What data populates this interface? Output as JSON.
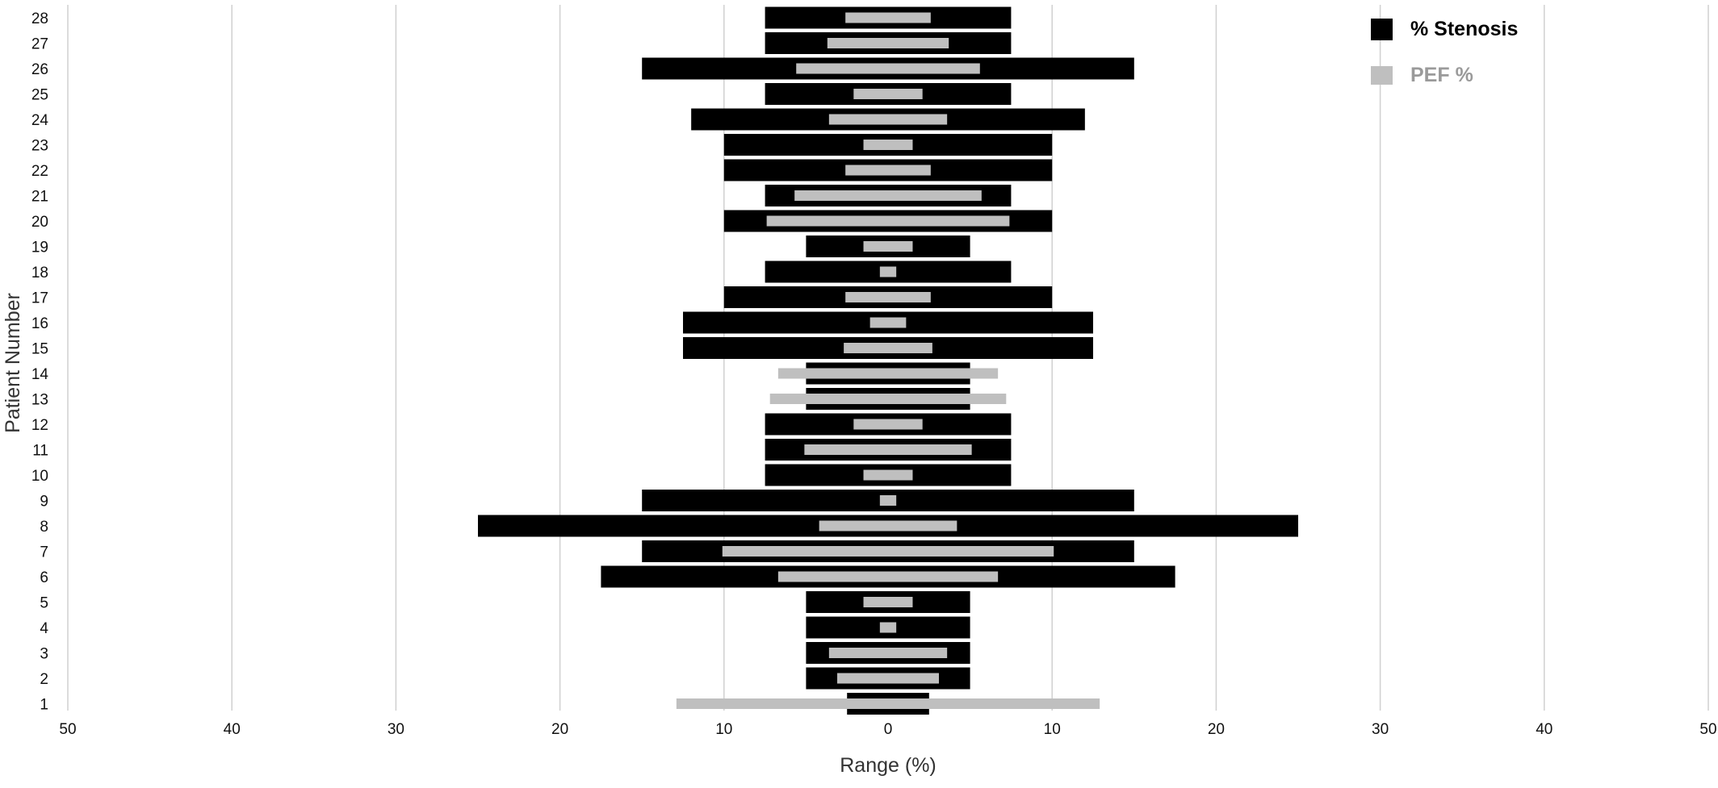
{
  "chart_data": {
    "type": "bar",
    "orientation": "horizontal",
    "symmetric_about_zero": true,
    "title": "",
    "xlabel": "Range (%)",
    "ylabel": "Patient Number",
    "xlim": [
      -50,
      50
    ],
    "x_ticks": [
      -50,
      -40,
      -30,
      -20,
      -10,
      0,
      10,
      20,
      30,
      40,
      50
    ],
    "x_tick_labels": [
      "50",
      "40",
      "30",
      "20",
      "10",
      "0",
      "10",
      "20",
      "30",
      "40",
      "50"
    ],
    "grid": "vertical",
    "legend": "top-right",
    "categories": [
      "1",
      "2",
      "3",
      "4",
      "5",
      "6",
      "7",
      "8",
      "9",
      "10",
      "11",
      "12",
      "13",
      "14",
      "15",
      "16",
      "17",
      "18",
      "19",
      "20",
      "21",
      "22",
      "23",
      "24",
      "25",
      "26",
      "27",
      "28"
    ],
    "series": [
      {
        "name": "% Stenosis",
        "color": "#000000",
        "values": [
          2.5,
          5,
          5,
          5,
          5,
          17.5,
          15,
          25,
          15,
          7.5,
          7.5,
          7.5,
          5,
          5,
          12.5,
          12.5,
          10,
          7.5,
          5,
          10,
          7.5,
          10,
          10,
          12,
          7.5,
          15,
          7.5,
          7.5
        ]
      },
      {
        "name": "PEF %",
        "color": "#bfbfbf",
        "values": [
          12.9,
          3.1,
          3.6,
          0.5,
          1.5,
          6.7,
          10.1,
          4.2,
          0.5,
          1.5,
          5.1,
          2.1,
          7.2,
          6.7,
          2.7,
          1.1,
          2.6,
          0.5,
          1.5,
          7.4,
          5.7,
          2.6,
          1.5,
          3.6,
          2.1,
          5.6,
          3.7,
          2.6
        ]
      }
    ]
  }
}
